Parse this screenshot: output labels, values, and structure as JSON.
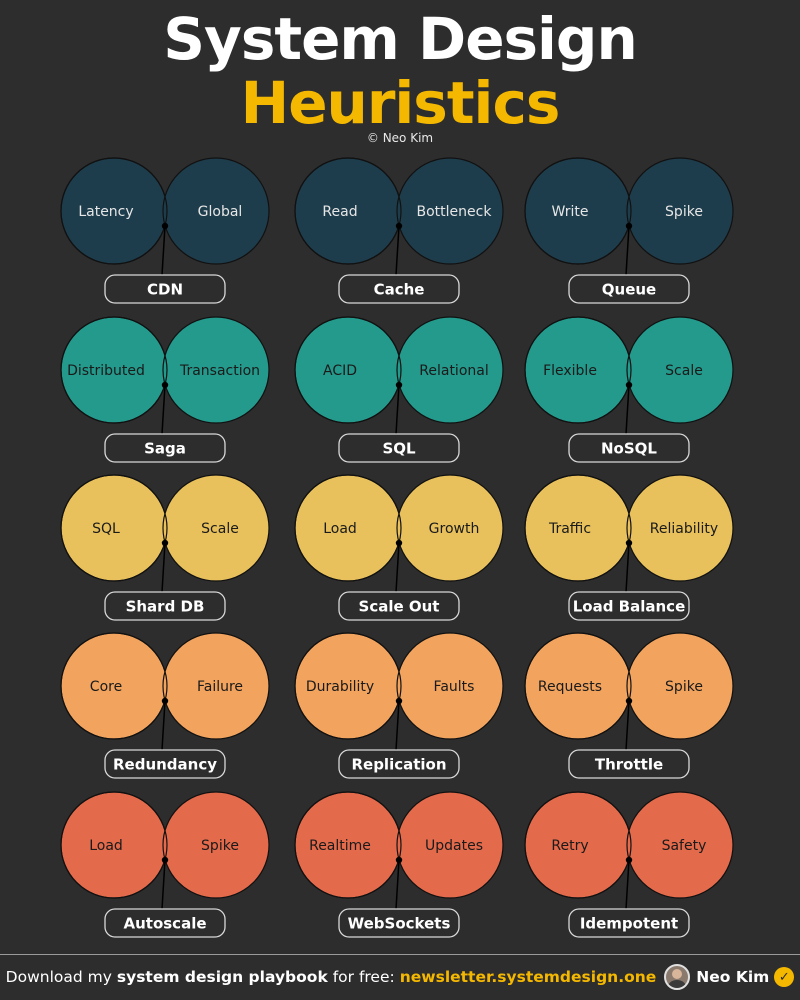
{
  "header": {
    "title_line1": "System Design",
    "title_line2": "Heuristics",
    "copyright": "© Neo Kim",
    "title_color": "#ffffff",
    "accent_color": "#f5b800"
  },
  "rows": [
    {
      "color": "#1e3d4c",
      "label_color": "#e6e6e6",
      "items": [
        {
          "left": "Latency",
          "right": "Global",
          "result": "CDN"
        },
        {
          "left": "Read",
          "right": "Bottleneck",
          "result": "Cache"
        },
        {
          "left": "Write",
          "right": "Spike",
          "result": "Queue"
        }
      ]
    },
    {
      "color": "#239a8c",
      "label_color": "#1a1a1a",
      "items": [
        {
          "left": "Distributed",
          "right": "Transaction",
          "result": "Saga"
        },
        {
          "left": "ACID",
          "right": "Relational",
          "result": "SQL"
        },
        {
          "left": "Flexible",
          "right": "Scale",
          "result": "NoSQL"
        }
      ]
    },
    {
      "color": "#e8c15d",
      "label_color": "#1a1a1a",
      "items": [
        {
          "left": "SQL",
          "right": "Scale",
          "result": "Shard DB"
        },
        {
          "left": "Load",
          "right": "Growth",
          "result": "Scale Out"
        },
        {
          "left": "Traffic",
          "right": "Reliability",
          "result": "Load Balance"
        }
      ]
    },
    {
      "color": "#f2a45f",
      "label_color": "#1a1a1a",
      "items": [
        {
          "left": "Core",
          "right": "Failure",
          "result": "Redundancy"
        },
        {
          "left": "Durability",
          "right": "Faults",
          "result": "Replication"
        },
        {
          "left": "Requests",
          "right": "Spike",
          "result": "Throttle"
        }
      ]
    },
    {
      "color": "#e46a4c",
      "label_color": "#1a1a1a",
      "items": [
        {
          "left": "Load",
          "right": "Spike",
          "result": "Autoscale"
        },
        {
          "left": "Realtime",
          "right": "Updates",
          "result": "WebSockets"
        },
        {
          "left": "Retry",
          "right": "Safety",
          "result": "Idempotent"
        }
      ]
    }
  ],
  "footer": {
    "prefix": "Download my",
    "bold": "system design playbook",
    "middle": "for free:",
    "link": "newsletter.systemdesign.one",
    "author": "Neo Kim",
    "avatar_icon": "author-avatar",
    "verified_icon": "verified-check-icon"
  }
}
